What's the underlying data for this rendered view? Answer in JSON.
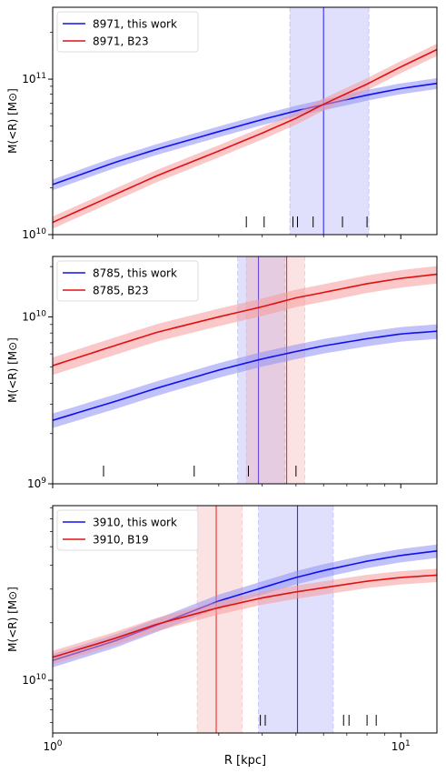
{
  "figure": {
    "xlabel": "R [kpc]",
    "ylabel": "M(<R) [M⊙]",
    "xtick_labels": [
      "10^0",
      "10^1"
    ]
  },
  "colors": {
    "this_work": "#1010ee",
    "literature": "#e01010",
    "band_blue": "#8f8ff5",
    "band_red": "#f59a9a",
    "rug": "#000000"
  },
  "chart_data": [
    {
      "type": "line",
      "xscale": "log",
      "yscale": "log",
      "xlim": [
        1.0,
        12.7
      ],
      "ylim": [
        10000000000.0,
        290000000000.0
      ],
      "xlabel": "R [kpc]",
      "ylabel": "M(<R) [M⊙]",
      "ytick_labels": [
        {
          "value": 10000000000.0,
          "label": "10^10"
        },
        {
          "value": 100000000000.0,
          "label": "10^11"
        }
      ],
      "legend_position": "top-left",
      "series": [
        {
          "name": "8971, this work",
          "color_key": "this_work",
          "x": [
            1.0,
            1.5,
            2.0,
            3.0,
            4.0,
            5.0,
            6.0,
            8.0,
            10.0,
            12.7
          ],
          "y": [
            21000000000.0,
            29000000000.0,
            35500000000.0,
            46000000000.0,
            55000000000.0,
            62500000000.0,
            68500000000.0,
            79000000000.0,
            87000000000.0,
            94000000000.0
          ],
          "band_frac": 0.08
        },
        {
          "name": "8971, B23",
          "color_key": "literature",
          "x": [
            1.0,
            1.5,
            2.0,
            3.0,
            4.0,
            5.0,
            6.0,
            8.0,
            10.0,
            12.7
          ],
          "y": [
            12000000000.0,
            18000000000.0,
            24000000000.0,
            34500000000.0,
            45000000000.0,
            56000000000.0,
            69000000000.0,
            93000000000.0,
            120000000000.0,
            155000000000.0
          ],
          "band_frac": 0.09
        }
      ],
      "vertical_lines": [
        {
          "color_key": "this_work",
          "x": 6.0,
          "band": [
            4.8,
            8.1
          ]
        }
      ],
      "rug_ticks": [
        3.6,
        4.05,
        4.9,
        5.05,
        5.6,
        6.8,
        8.0
      ]
    },
    {
      "type": "line",
      "xscale": "log",
      "yscale": "log",
      "xlim": [
        1.0,
        12.7
      ],
      "ylim": [
        1000000000.0,
        23000000000.0
      ],
      "xlabel": "R [kpc]",
      "ylabel": "M(<R) [M⊙]",
      "ytick_labels": [
        {
          "value": 1000000000.0,
          "label": "10^9"
        },
        {
          "value": 10000000000.0,
          "label": "10^10"
        }
      ],
      "legend_position": "top-left",
      "series": [
        {
          "name": "8785, this work",
          "color_key": "this_work",
          "x": [
            1.0,
            1.5,
            2.0,
            3.0,
            4.0,
            5.0,
            6.0,
            8.0,
            10.0,
            12.7
          ],
          "y": [
            2400000000.0,
            3100000000.0,
            3750000000.0,
            4800000000.0,
            5600000000.0,
            6200000000.0,
            6700000000.0,
            7400000000.0,
            7900000000.0,
            8200000000.0
          ],
          "band_frac": 0.1
        },
        {
          "name": "8785, B23",
          "color_key": "literature",
          "x": [
            1.0,
            1.5,
            2.0,
            3.0,
            4.0,
            5.0,
            6.0,
            8.0,
            10.0,
            12.7
          ],
          "y": [
            5100000000.0,
            6700000000.0,
            8100000000.0,
            10000000000.0,
            11500000000.0,
            13000000000.0,
            14000000000.0,
            15800000000.0,
            17000000000.0,
            18000000000.0
          ],
          "band_frac": 0.12
        }
      ],
      "vertical_lines": [
        {
          "color_key": "this_work",
          "x": 3.9,
          "band": [
            3.4,
            4.65
          ]
        },
        {
          "color_key": "literature",
          "x": 4.7,
          "band": [
            3.6,
            5.3
          ]
        }
      ],
      "rug_ticks": [
        1.4,
        2.55,
        3.65,
        5.0
      ]
    },
    {
      "type": "line",
      "xscale": "log",
      "yscale": "log",
      "xlim": [
        1.0,
        12.7
      ],
      "ylim": [
        5300000000.0,
        82000000000.0
      ],
      "xlabel": "R [kpc]",
      "ylabel": "M(<R) [M⊙]",
      "ytick_labels": [
        {
          "value": 10000000000.0,
          "label": "10^10"
        }
      ],
      "legend_position": "top-left",
      "series": [
        {
          "name": "3910, this work",
          "color_key": "this_work",
          "x": [
            1.0,
            1.5,
            2.0,
            3.0,
            4.0,
            5.0,
            6.0,
            8.0,
            10.0,
            12.7
          ],
          "y": [
            12700000000.0,
            16000000000.0,
            19500000000.0,
            26000000000.0,
            30500000000.0,
            34500000000.0,
            37500000000.0,
            42000000000.0,
            45000000000.0,
            47500000000.0
          ],
          "band_frac": 0.08
        },
        {
          "name": "3910, B19",
          "color_key": "literature",
          "x": [
            1.0,
            1.5,
            2.0,
            3.0,
            4.0,
            5.0,
            6.0,
            8.0,
            10.0,
            12.7
          ],
          "y": [
            13200000000.0,
            16500000000.0,
            19700000000.0,
            24000000000.0,
            27000000000.0,
            29000000000.0,
            30500000000.0,
            33000000000.0,
            34500000000.0,
            35500000000.0
          ],
          "band_frac": 0.08
        }
      ],
      "vertical_lines": [
        {
          "color_key": "literature",
          "x": 2.95,
          "band": [
            2.6,
            3.5
          ]
        },
        {
          "color_key": "this_work",
          "x": 5.05,
          "band": [
            3.9,
            6.4
          ]
        }
      ],
      "rug_ticks": [
        3.95,
        4.08,
        6.85,
        7.1,
        8.0,
        8.5
      ]
    }
  ]
}
